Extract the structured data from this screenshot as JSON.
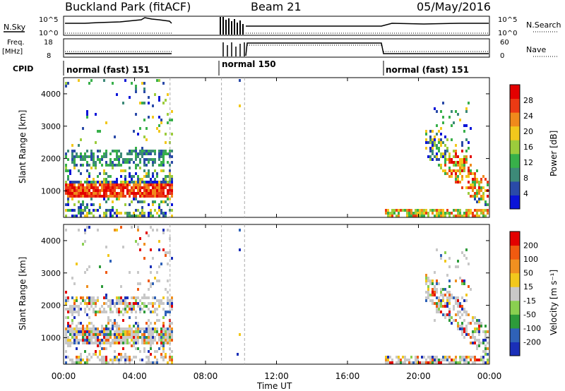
{
  "header": {
    "station": "Buckland Park (fitACF)",
    "beam": "Beam 21",
    "date": "05/May/2016"
  },
  "top_panels": {
    "nsky_label": "N.Sky",
    "nsearch_label": "N.Search",
    "freq_label_1": "Freq.",
    "freq_label_2": "[MHz]",
    "nave_label": "Nave",
    "cpid_label": "CPID",
    "left_ticks_noise": [
      "10^5",
      "10^0"
    ],
    "right_ticks_noise": [
      "10^5",
      "10^0"
    ],
    "left_ticks_freq": [
      "18",
      "8"
    ],
    "right_ticks_nave": [
      "60",
      "0"
    ],
    "cpid_segments": [
      {
        "label": "normal (fast) 151",
        "start": 0,
        "end": 9.0
      },
      {
        "label": "normal 150",
        "start": 9.0,
        "end": 18.0
      },
      {
        "label": "normal (fast) 151",
        "start": 18.0,
        "end": 24.0
      }
    ]
  },
  "chart_data": [
    {
      "type": "heatmap",
      "ylabel": "Slant Range [km]",
      "xlabel": "Time UT",
      "x_ticks": [
        "00:00",
        "04:00",
        "08:00",
        "12:00",
        "16:00",
        "20:00",
        "00:00"
      ],
      "y_ticks": [
        1000,
        2000,
        3000,
        4000
      ],
      "xlim": [
        0,
        24
      ],
      "ylim": [
        180,
        4500
      ],
      "colorbar": {
        "label": "Power [dB]",
        "ticks": [
          4,
          8,
          12,
          16,
          20,
          24,
          28
        ],
        "range": [
          0,
          32
        ],
        "colors": [
          "#0a14d8",
          "#2a4aa8",
          "#3d8a78",
          "#38b04a",
          "#9ccc3c",
          "#f2c81c",
          "#f08a1c",
          "#ec3a14",
          "#e30000"
        ]
      },
      "data_segments_hours": [
        [
          0,
          6.0
        ],
        [
          9.6,
          9.9
        ],
        [
          18.0,
          24.0
        ]
      ]
    },
    {
      "type": "heatmap",
      "ylabel": "Slant Range [km]",
      "xlabel": "Time UT",
      "x_ticks": [
        "00:00",
        "04:00",
        "08:00",
        "12:00",
        "16:00",
        "20:00",
        "00:00"
      ],
      "y_ticks": [
        1000,
        2000,
        3000,
        4000
      ],
      "xlim": [
        0,
        24
      ],
      "ylim": [
        180,
        4500
      ],
      "colorbar": {
        "label": "Velocity [m s⁻¹]",
        "ticks": [
          200,
          100,
          50,
          15,
          -15,
          -50,
          -100,
          -200
        ],
        "colors": [
          "#1a2fb8",
          "#2f62b8",
          "#2d9b3a",
          "#8ad050",
          "#c8c8c8",
          "#f2c81c",
          "#f09020",
          "#f05a10",
          "#e30000"
        ]
      },
      "data_segments_hours": [
        [
          0,
          6.0
        ],
        [
          9.6,
          9.9
        ],
        [
          18.0,
          24.0
        ]
      ]
    }
  ]
}
